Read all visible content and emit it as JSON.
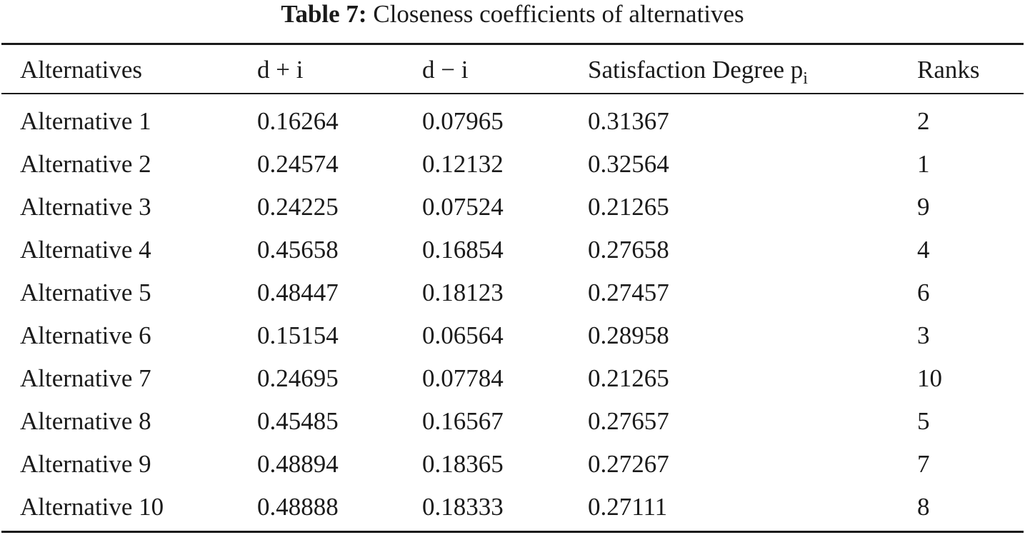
{
  "caption": {
    "label": "Table 7:",
    "text": "Closeness coefficients of alternatives"
  },
  "table": {
    "headers": [
      "Alternatives",
      "d + i",
      "d − i",
      "Satisfaction Degree p",
      "Ranks"
    ],
    "header_subscript": "i",
    "rows": [
      [
        "Alternative 1",
        "0.16264",
        "0.07965",
        "0.31367",
        "2"
      ],
      [
        "Alternative 2",
        "0.24574",
        "0.12132",
        "0.32564",
        "1"
      ],
      [
        "Alternative 3",
        "0.24225",
        "0.07524",
        "0.21265",
        "9"
      ],
      [
        "Alternative 4",
        "0.45658",
        "0.16854",
        "0.27658",
        "4"
      ],
      [
        "Alternative 5",
        "0.48447",
        "0.18123",
        "0.27457",
        "6"
      ],
      [
        "Alternative 6",
        "0.15154",
        "0.06564",
        "0.28958",
        "3"
      ],
      [
        "Alternative 7",
        "0.24695",
        "0.07784",
        "0.21265",
        "10"
      ],
      [
        "Alternative 8",
        "0.45485",
        "0.16567",
        "0.27657",
        "5"
      ],
      [
        "Alternative 9",
        "0.48894",
        "0.18365",
        "0.27267",
        "7"
      ],
      [
        "Alternative 10",
        "0.48888",
        "0.18333",
        "0.27111",
        "8"
      ]
    ]
  }
}
